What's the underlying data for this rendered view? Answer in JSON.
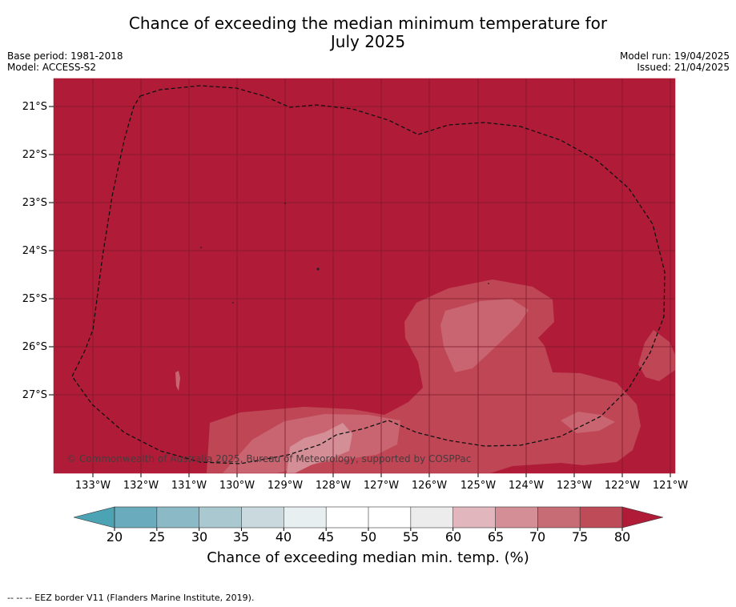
{
  "title_line1": "Chance of exceeding the median minimum temperature for",
  "title_line2": "July 2025",
  "meta_left": {
    "base_period": "Base period: 1981-2018",
    "model": "Model: ACCESS-S2"
  },
  "meta_right": {
    "model_run": "Model run: 19/04/2025",
    "issued": "Issued: 21/04/2025"
  },
  "y_ticks": [
    "21°S",
    "22°S",
    "23°S",
    "24°S",
    "25°S",
    "26°S",
    "27°S"
  ],
  "x_ticks": [
    "133°W",
    "132°W",
    "131°W",
    "130°W",
    "129°W",
    "128°W",
    "127°W",
    "126°W",
    "125°W",
    "124°W",
    "123°W",
    "122°W",
    "121°W"
  ],
  "copyright": "© Commonwealth of Australia 2025, Bureau of Meteorology, supported by COSPPac",
  "colorbar": {
    "ticks": [
      "20",
      "25",
      "30",
      "35",
      "40",
      "45",
      "50",
      "55",
      "60",
      "65",
      "70",
      "75",
      "80"
    ],
    "label": "Chance of exceeding median min. temp. (%)",
    "colors": [
      "#6aacbd",
      "#8bbac6",
      "#a9c8cf",
      "#cad9de",
      "#e8eff1",
      "#ffffff",
      "#ffffff",
      "#ececec",
      "#e1b7bd",
      "#d48e96",
      "#c76b75",
      "#bd4b58"
    ],
    "under_color": "#4ba3b3",
    "over_color": "#b01c38"
  },
  "map_colors": {
    "over80": "#b01c38",
    "c75_80": "#be4655",
    "c70_75": "#c86570",
    "c65_70": "#d48e96"
  },
  "footer": "--  --  -- EEZ border V11 (Flanders Marine Institute, 2019)."
}
